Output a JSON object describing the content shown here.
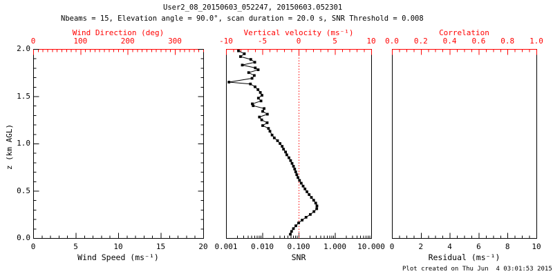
{
  "header": {
    "title": "User2_08_20150603_052247, 20150603.052301",
    "subtitle": "Nbeams = 15, Elevation angle = 90.0°, scan duration = 20.0 s, SNR Threshold = 0.008"
  },
  "footer": {
    "created": "Plot created on Thu Jun  4 03:01:53 2015"
  },
  "colors": {
    "axis_red": "#ff0000",
    "black": "#000000",
    "background": "#ffffff",
    "marker": "#000000"
  },
  "y_axis": {
    "title": "z (km AGL)",
    "min": 0,
    "max": 2,
    "tick_values": [
      2.0,
      1.5,
      1.0,
      0.5,
      0.0
    ],
    "tick_labels": [
      "2.0",
      "1.5",
      "1.0",
      "0.5",
      "0.0"
    ],
    "minor_step": 0.1
  },
  "chart_data": [
    {
      "panel": "wind",
      "type": "scatter",
      "series": [],
      "bottom_axis": {
        "label": "Wind Speed (ms⁻¹)",
        "min": 0,
        "max": 20,
        "tick_values": [
          0,
          5,
          10,
          15,
          20
        ],
        "tick_labels": [
          "0",
          "5",
          "10",
          "15",
          "20"
        ],
        "minor_step": 1,
        "color": "#000000"
      },
      "top_axis": {
        "label": "Wind Direction (deg)",
        "min": 0,
        "max": 360,
        "tick_values": [
          0,
          100,
          200,
          300
        ],
        "tick_labels": [
          "0",
          "100",
          "200",
          "300"
        ],
        "minor_step": 10,
        "color": "#ff0000"
      }
    },
    {
      "panel": "snr",
      "type": "line",
      "bottom_axis": {
        "label": "SNR",
        "scale": "log",
        "min": 0.001,
        "max": 10,
        "tick_values": [
          0.001,
          0.01,
          0.1,
          1,
          10
        ],
        "tick_labels": [
          "0.001",
          "0.010",
          "0.100",
          "1.000",
          "10.000"
        ],
        "color": "#000000"
      },
      "top_axis": {
        "label": "Vertical velocity (ms⁻¹)",
        "min": -10,
        "max": 10,
        "tick_values": [
          -10,
          -5,
          0,
          5,
          10
        ],
        "tick_labels": [
          "-10",
          "-5",
          "0",
          "5",
          "10"
        ],
        "minor_step": 1,
        "color": "#ff0000"
      },
      "reference_line": {
        "value": 0.1,
        "axis": "bottom",
        "style": "dotted",
        "color": "#ff0000"
      },
      "points_zkm_snr": [
        [
          1.98,
          0.0022
        ],
        [
          1.95,
          0.0032
        ],
        [
          1.92,
          0.0025
        ],
        [
          1.89,
          0.0048
        ],
        [
          1.86,
          0.0062
        ],
        [
          1.83,
          0.0028
        ],
        [
          1.8,
          0.0064
        ],
        [
          1.78,
          0.0077
        ],
        [
          1.75,
          0.0042
        ],
        [
          1.72,
          0.006
        ],
        [
          1.69,
          0.0052
        ],
        [
          1.65,
          0.0012
        ],
        [
          1.63,
          0.0047
        ],
        [
          1.6,
          0.0063
        ],
        [
          1.57,
          0.0076
        ],
        [
          1.54,
          0.0088
        ],
        [
          1.51,
          0.0098
        ],
        [
          1.48,
          0.0078
        ],
        [
          1.45,
          0.0092
        ],
        [
          1.42,
          0.0053
        ],
        [
          1.4,
          0.0056
        ],
        [
          1.37,
          0.0112
        ],
        [
          1.34,
          0.0102
        ],
        [
          1.31,
          0.0138
        ],
        [
          1.28,
          0.0083
        ],
        [
          1.25,
          0.0096
        ],
        [
          1.22,
          0.0136
        ],
        [
          1.19,
          0.0102
        ],
        [
          1.16,
          0.0148
        ],
        [
          1.13,
          0.0162
        ],
        [
          1.09,
          0.0186
        ],
        [
          1.06,
          0.0214
        ],
        [
          1.03,
          0.0262
        ],
        [
          1.0,
          0.0308
        ],
        [
          0.97,
          0.0352
        ],
        [
          0.94,
          0.0384
        ],
        [
          0.91,
          0.0436
        ],
        [
          0.88,
          0.0472
        ],
        [
          0.85,
          0.054
        ],
        [
          0.82,
          0.06
        ],
        [
          0.79,
          0.066
        ],
        [
          0.76,
          0.072
        ],
        [
          0.73,
          0.078
        ],
        [
          0.7,
          0.083
        ],
        [
          0.67,
          0.089
        ],
        [
          0.64,
          0.096
        ],
        [
          0.61,
          0.106
        ],
        [
          0.58,
          0.118
        ],
        [
          0.55,
          0.133
        ],
        [
          0.52,
          0.15
        ],
        [
          0.49,
          0.17
        ],
        [
          0.46,
          0.195
        ],
        [
          0.43,
          0.225
        ],
        [
          0.4,
          0.26
        ],
        [
          0.37,
          0.295
        ],
        [
          0.34,
          0.32
        ],
        [
          0.31,
          0.315
        ],
        [
          0.28,
          0.265
        ],
        [
          0.25,
          0.21
        ],
        [
          0.22,
          0.16
        ],
        [
          0.19,
          0.125
        ],
        [
          0.16,
          0.1
        ],
        [
          0.13,
          0.084
        ],
        [
          0.1,
          0.072
        ],
        [
          0.07,
          0.064
        ],
        [
          0.04,
          0.059
        ]
      ]
    },
    {
      "panel": "residual",
      "type": "scatter",
      "series": [],
      "bottom_axis": {
        "label": "Residual (ms⁻¹)",
        "min": 0,
        "max": 10,
        "tick_values": [
          0,
          2,
          4,
          6,
          8,
          10
        ],
        "tick_labels": [
          "0",
          "2",
          "4",
          "6",
          "8",
          "10"
        ],
        "minor_step": 0.5,
        "color": "#000000"
      },
      "top_axis": {
        "label": "Correlation",
        "min": 0,
        "max": 1,
        "tick_values": [
          0.0,
          0.2,
          0.4,
          0.6,
          0.8,
          1.0
        ],
        "tick_labels": [
          "0.0",
          "0.2",
          "0.4",
          "0.6",
          "0.8",
          "1.0"
        ],
        "minor_step": 0.05,
        "color": "#ff0000"
      }
    }
  ]
}
